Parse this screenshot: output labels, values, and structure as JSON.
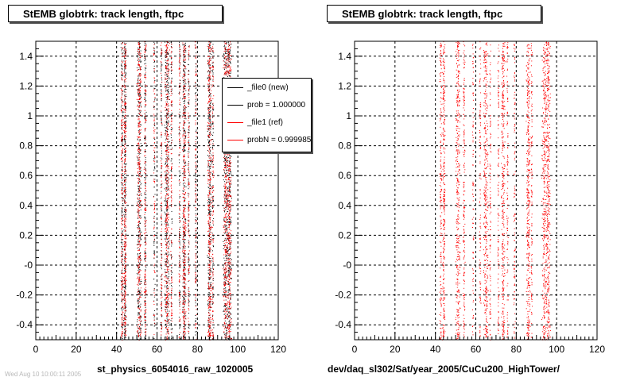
{
  "panels": [
    {
      "title": "StEMB globtrk: track length, ftpc",
      "x_axis_label": "st_physics_6054016_raw_1020005"
    },
    {
      "title": "StEMB globtrk: track length, ftpc",
      "x_axis_label": "dev/daq_sl302/Sat/year_2005/CuCu200_HighTower/"
    }
  ],
  "legend": {
    "entries": [
      {
        "label": "_file0 (new)",
        "color": "#000000"
      },
      {
        "label": "prob = 1.000000",
        "color": "#000000"
      },
      {
        "label": "_file1 (ref)",
        "color": "#ff0000"
      },
      {
        "label": "probN = 0.999985",
        "color": "#ff0000"
      }
    ]
  },
  "footer_text": "Wed Aug 10 10:00:11 2005",
  "chart_data": [
    {
      "type": "scatter",
      "title": "StEMB globtrk: track length, ftpc",
      "xlabel": "st_physics_6054016_raw_1020005",
      "ylabel": "",
      "xlim": [
        0,
        120
      ],
      "ylim": [
        -0.5,
        1.5
      ],
      "x_ticks": [
        0,
        20,
        40,
        60,
        80,
        100,
        120
      ],
      "y_ticks": [
        "-0.4",
        "-0.2",
        "-0",
        "0.2",
        "0.4",
        "0.6",
        "0.8",
        "1",
        "1.2",
        "1.4"
      ],
      "grid": true,
      "legend_position": "top-right",
      "series": [
        {
          "name": "_file0 (new)",
          "color": "#000000",
          "bands": [
            {
              "x": 42.5,
              "width": 0.6,
              "density": 0.5
            },
            {
              "x": 44.0,
              "width": 0.7,
              "density": 0.8
            },
            {
              "x": 51.0,
              "width": 1.2,
              "density": 1.0
            },
            {
              "x": 54.0,
              "width": 0.6,
              "density": 0.5
            },
            {
              "x": 58.5,
              "width": 0.4,
              "density": 0.25
            },
            {
              "x": 62.0,
              "width": 0.4,
              "density": 0.3
            },
            {
              "x": 64.8,
              "width": 1.3,
              "density": 1.0
            },
            {
              "x": 67.0,
              "width": 0.4,
              "density": 0.3
            },
            {
              "x": 71.0,
              "width": 0.4,
              "density": 0.3
            },
            {
              "x": 73.3,
              "width": 1.0,
              "density": 0.9
            },
            {
              "x": 75.5,
              "width": 0.4,
              "density": 0.3
            },
            {
              "x": 79.0,
              "width": 0.4,
              "density": 0.3
            },
            {
              "x": 85.8,
              "width": 1.1,
              "density": 1.0
            },
            {
              "x": 87.5,
              "width": 0.4,
              "density": 0.3
            },
            {
              "x": 93.8,
              "width": 1.4,
              "density": 1.0
            },
            {
              "x": 95.7,
              "width": 1.2,
              "density": 1.0
            }
          ]
        },
        {
          "name": "_file1 (ref)",
          "color": "#ff0000",
          "bands": [
            {
              "x": 42.5,
              "width": 0.6,
              "density": 0.5
            },
            {
              "x": 44.0,
              "width": 0.7,
              "density": 0.8
            },
            {
              "x": 51.0,
              "width": 1.2,
              "density": 1.0
            },
            {
              "x": 54.0,
              "width": 0.6,
              "density": 0.5
            },
            {
              "x": 58.5,
              "width": 0.4,
              "density": 0.25
            },
            {
              "x": 62.0,
              "width": 0.4,
              "density": 0.3
            },
            {
              "x": 64.8,
              "width": 1.3,
              "density": 1.0
            },
            {
              "x": 67.0,
              "width": 0.4,
              "density": 0.3
            },
            {
              "x": 71.0,
              "width": 0.4,
              "density": 0.3
            },
            {
              "x": 73.3,
              "width": 1.0,
              "density": 0.9
            },
            {
              "x": 75.5,
              "width": 0.4,
              "density": 0.3
            },
            {
              "x": 79.0,
              "width": 0.4,
              "density": 0.3
            },
            {
              "x": 85.8,
              "width": 1.1,
              "density": 1.0
            },
            {
              "x": 87.5,
              "width": 0.4,
              "density": 0.3
            },
            {
              "x": 93.8,
              "width": 1.4,
              "density": 1.0
            },
            {
              "x": 95.7,
              "width": 1.2,
              "density": 1.0
            }
          ]
        }
      ]
    },
    {
      "type": "scatter",
      "title": "StEMB globtrk: track length, ftpc",
      "xlabel": "dev/daq_sl302/Sat/year_2005/CuCu200_HighTower/",
      "ylabel": "",
      "xlim": [
        0,
        120
      ],
      "ylim": [
        -0.5,
        1.5
      ],
      "x_ticks": [
        0,
        20,
        40,
        60,
        80,
        100,
        120
      ],
      "y_ticks": [
        "-0.4",
        "-0.2",
        "-0",
        "0.2",
        "0.4",
        "0.6",
        "0.8",
        "1",
        "1.2",
        "1.4"
      ],
      "grid": true,
      "series": [
        {
          "name": "_file1 (ref)",
          "color": "#ff0000",
          "bands": [
            {
              "x": 42.5,
              "width": 0.6,
              "density": 0.5
            },
            {
              "x": 44.0,
              "width": 0.7,
              "density": 0.8
            },
            {
              "x": 51.0,
              "width": 1.2,
              "density": 1.0
            },
            {
              "x": 54.0,
              "width": 0.6,
              "density": 0.5
            },
            {
              "x": 58.5,
              "width": 0.4,
              "density": 0.25
            },
            {
              "x": 62.0,
              "width": 0.4,
              "density": 0.3
            },
            {
              "x": 64.8,
              "width": 1.3,
              "density": 1.0
            },
            {
              "x": 67.0,
              "width": 0.4,
              "density": 0.3
            },
            {
              "x": 71.0,
              "width": 0.4,
              "density": 0.3
            },
            {
              "x": 73.3,
              "width": 1.0,
              "density": 0.9
            },
            {
              "x": 75.5,
              "width": 0.4,
              "density": 0.3
            },
            {
              "x": 79.0,
              "width": 0.4,
              "density": 0.3
            },
            {
              "x": 85.8,
              "width": 1.1,
              "density": 1.0
            },
            {
              "x": 87.5,
              "width": 0.4,
              "density": 0.3
            },
            {
              "x": 93.8,
              "width": 1.4,
              "density": 1.0
            },
            {
              "x": 95.7,
              "width": 1.2,
              "density": 1.0
            }
          ]
        }
      ]
    }
  ]
}
